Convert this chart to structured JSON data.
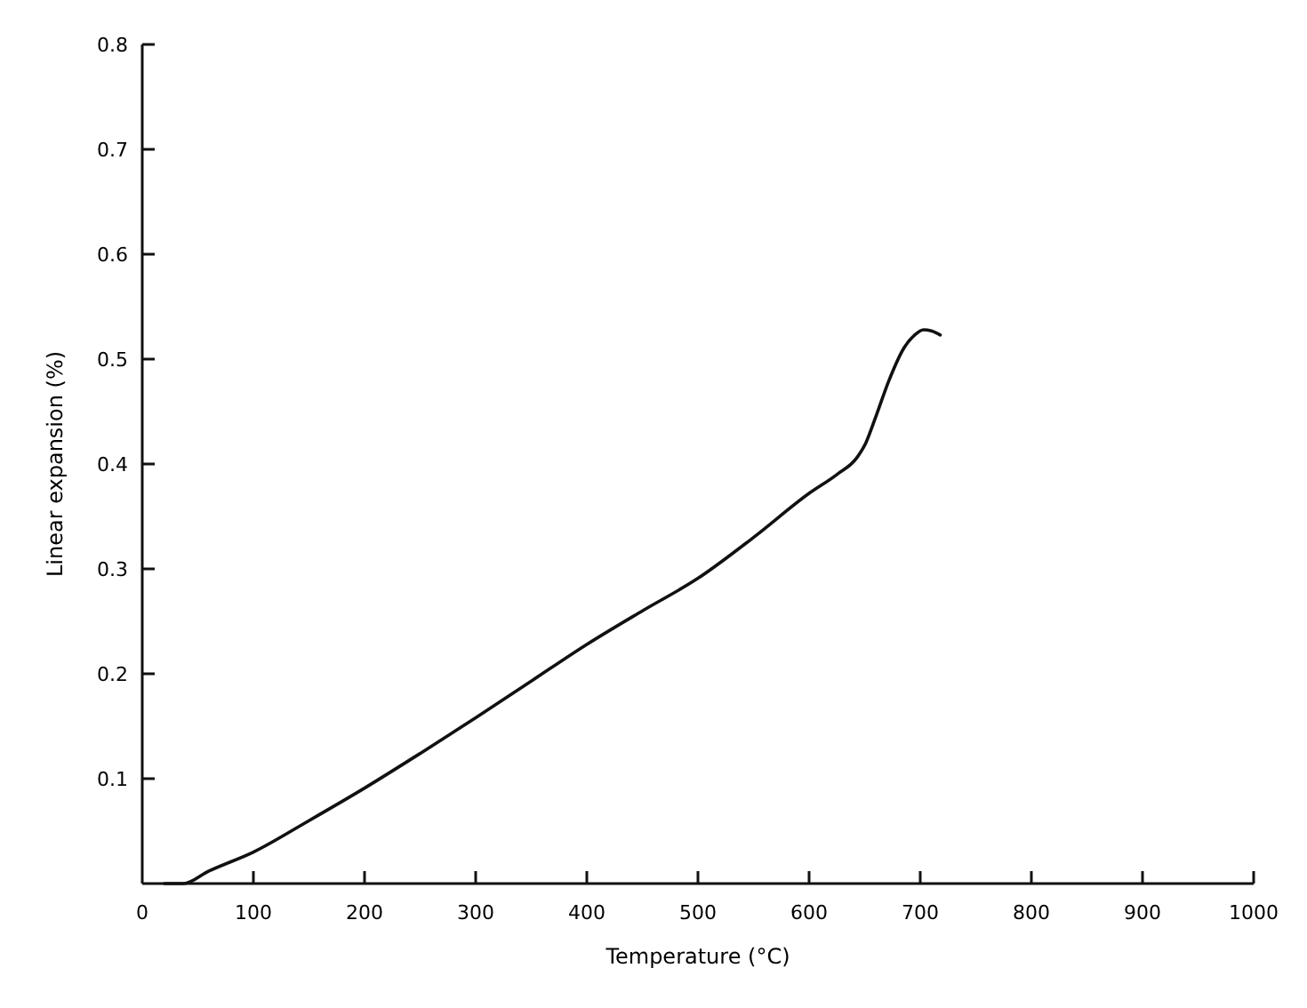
{
  "chart_data": {
    "type": "line",
    "xlabel": "Temperature (°C)",
    "ylabel": "Linear expansion (%)",
    "xlim": [
      0,
      1000
    ],
    "xticks": [
      0,
      100,
      200,
      300,
      400,
      500,
      600,
      700,
      800,
      900,
      1000
    ],
    "ylim": [
      0,
      0.8
    ],
    "yticks": [
      {
        "value": 0,
        "label": null
      },
      0.1,
      0.2,
      0.3,
      0.4,
      0.5,
      0.6,
      0.7,
      0.8
    ],
    "grid": false,
    "marker": "none",
    "line_style": "solid",
    "series": [
      {
        "color": "#111111",
        "x": [
          20,
          37,
          60,
          100,
          150,
          200,
          250,
          300,
          350,
          400,
          450,
          500,
          550,
          600,
          625,
          643,
          651,
          660,
          672,
          685,
          695,
          703,
          710,
          718
        ],
        "values": [
          0,
          0,
          0.012,
          0.03,
          0.06,
          0.091,
          0.124,
          0.158,
          0.193,
          0.228,
          0.26,
          0.291,
          0.33,
          0.372,
          0.39,
          0.406,
          0.42,
          0.445,
          0.48,
          0.51,
          0.523,
          0.528,
          0.527,
          0.523
        ]
      }
    ]
  }
}
